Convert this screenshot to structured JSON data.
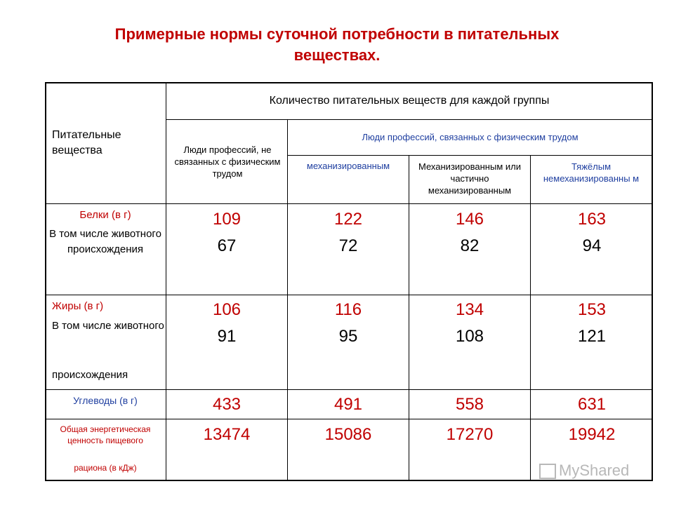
{
  "title_line1": "Примерные нормы суточной потребности в питательных",
  "title_line2": "веществах.",
  "header": {
    "nutrients": "Питательные вещества",
    "quantity": "Количество питательных веществ  для каждой группы",
    "non_physical": "Люди профессий, не связанных с физическим трудом",
    "physical": "Люди профессий, связанных с физическим трудом",
    "mechanized": "механизированным",
    "partial": "Механизированным или частично механизированным",
    "heavy": "Тяжёлым немеханизированны м"
  },
  "rows": {
    "protein_label": "Белки (в г)",
    "protein_sub": "В том числе животного происхождения",
    "fat_label": "Жиры (в г)",
    "fat_sub1": "В том числе животного",
    "fat_sub2": "происхождения",
    "carb_label": "Углеводы (в г)",
    "energy_label1": "Общая энергетическая ценность пищевого",
    "energy_label2": "рациона (в кДж)"
  },
  "values": {
    "protein": [
      "109",
      "122",
      "146",
      "163"
    ],
    "protein_animal": [
      "67",
      "72",
      "82",
      "94"
    ],
    "fat": [
      "106",
      "116",
      "134",
      "153"
    ],
    "fat_animal": [
      "91",
      "95",
      "108",
      "121"
    ],
    "carb": [
      "433",
      "491",
      "558",
      "631"
    ],
    "energy": [
      "13474",
      "15086",
      "17270",
      "19942"
    ]
  },
  "watermark": "MyShared",
  "colors": {
    "title": "#c00000",
    "accent_blue": "#1f3fa0",
    "value_red": "#c00000"
  }
}
